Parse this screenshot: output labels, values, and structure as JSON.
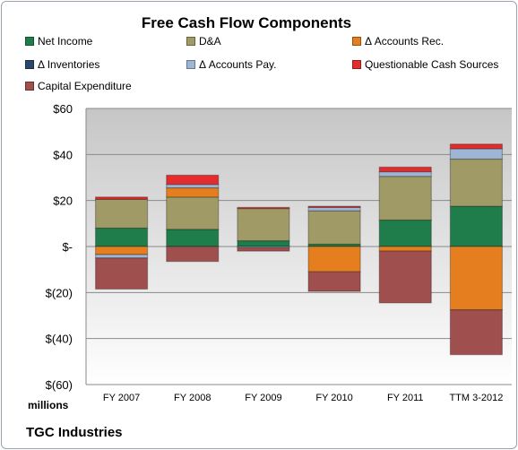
{
  "chart_data": {
    "type": "bar",
    "stacked": true,
    "title": "Free Cash Flow Components",
    "units_label": "millions",
    "footer": "TGC Industries",
    "categories": [
      "FY 2007",
      "FY 2008",
      "FY 2009",
      "FY 2010",
      "FY 2011",
      "TTM 3-2012"
    ],
    "ylim": [
      -60,
      60
    ],
    "yticks": [
      60,
      40,
      20,
      0,
      -20,
      -40,
      -60
    ],
    "ytick_labels": [
      "$60",
      "$40",
      "$20",
      "$-",
      "$(20)",
      "$(40)",
      "$(60)"
    ],
    "grid": true,
    "legend_position": "top",
    "series": [
      {
        "name": "Net Income",
        "color": "#1e7d4a",
        "values": [
          8,
          7.5,
          2.5,
          1,
          11.5,
          17.5
        ]
      },
      {
        "name": "D&A",
        "color": "#a09a66",
        "values": [
          12.5,
          14,
          14,
          14.5,
          19,
          20.5
        ]
      },
      {
        "name": "Δ Accounts Rec.",
        "color": "#e57e1e",
        "values": [
          -3.5,
          4,
          0,
          -11,
          -2,
          -27.5
        ]
      },
      {
        "name": "Δ Inventories",
        "color": "#2a4767",
        "values": [
          0,
          0,
          0,
          0,
          0,
          0
        ]
      },
      {
        "name": "Δ Accounts Pay.",
        "color": "#9eb6d4",
        "values": [
          -1.5,
          1.5,
          -0.5,
          1.5,
          2,
          4.5
        ]
      },
      {
        "name": "Questionable Cash Sources",
        "color": "#e32c2c",
        "values": [
          1,
          4,
          0.5,
          0.5,
          2,
          2
        ]
      },
      {
        "name": "Capital Expenditure",
        "color": "#a04f4f",
        "values": [
          -13.5,
          -6.5,
          -1.5,
          -8.5,
          -22.5,
          -19.5
        ]
      }
    ]
  }
}
